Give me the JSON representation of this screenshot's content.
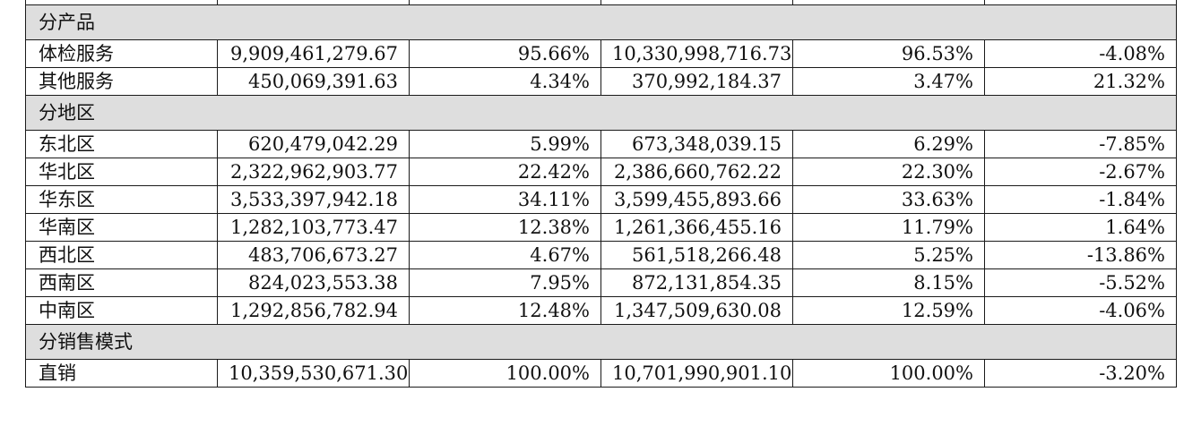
{
  "sections": [
    {
      "title": "分产品",
      "rows": [
        {
          "label": "体检服务",
          "values": [
            "9,909,461,279.67",
            "95.66%",
            "10,330,998,716.73",
            "96.53%",
            "-4.08%"
          ]
        },
        {
          "label": "其他服务",
          "values": [
            "450,069,391.63",
            "4.34%",
            "370,992,184.37",
            "3.47%",
            "21.32%"
          ]
        }
      ]
    },
    {
      "title": "分地区",
      "rows": [
        {
          "label": "东北区",
          "values": [
            "620,479,042.29",
            "5.99%",
            "673,348,039.15",
            "6.29%",
            "-7.85%"
          ]
        },
        {
          "label": "华北区",
          "values": [
            "2,322,962,903.77",
            "22.42%",
            "2,386,660,762.22",
            "22.30%",
            "-2.67%"
          ]
        },
        {
          "label": "华东区",
          "values": [
            "3,533,397,942.18",
            "34.11%",
            "3,599,455,893.66",
            "33.63%",
            "-1.84%"
          ]
        },
        {
          "label": "华南区",
          "values": [
            "1,282,103,773.47",
            "12.38%",
            "1,261,366,455.16",
            "11.79%",
            "1.64%"
          ]
        },
        {
          "label": "西北区",
          "values": [
            "483,706,673.27",
            "4.67%",
            "561,518,266.48",
            "5.25%",
            "-13.86%"
          ]
        },
        {
          "label": "西南区",
          "values": [
            "824,023,553.38",
            "7.95%",
            "872,131,854.35",
            "8.15%",
            "-5.52%"
          ]
        },
        {
          "label": "中南区",
          "values": [
            "1,292,856,782.94",
            "12.48%",
            "1,347,509,630.08",
            "12.59%",
            "-4.06%"
          ]
        }
      ]
    },
    {
      "title": "分销售模式",
      "rows": [
        {
          "label": "直销",
          "values": [
            "10,359,530,671.30",
            "100.00%",
            "10,701,990,901.10",
            "100.00%",
            "-3.20%"
          ]
        }
      ]
    }
  ]
}
